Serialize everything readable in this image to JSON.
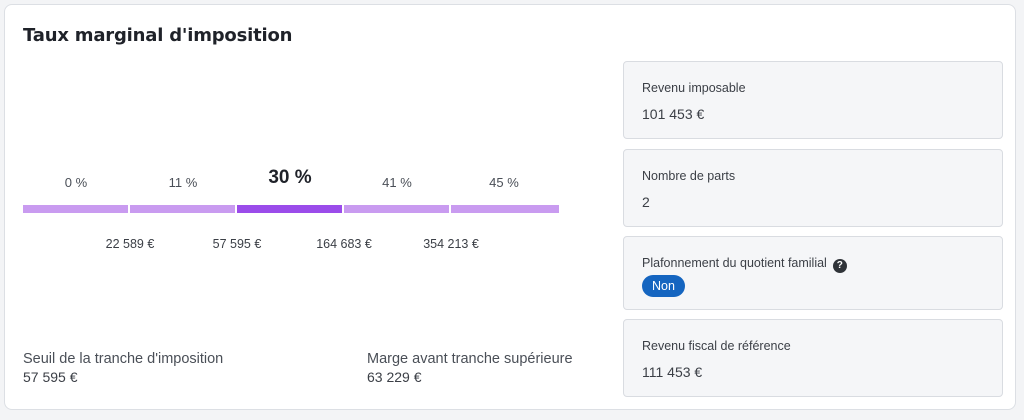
{
  "title": "Taux marginal d'imposition",
  "brackets": {
    "rates": [
      "0 %",
      "11 %",
      "30 %",
      "41 %",
      "45 %"
    ],
    "active_index": 2,
    "thresholds": [
      "22 589 €",
      "57 595 €",
      "164 683 €",
      "354 213 €"
    ]
  },
  "stats": {
    "seuil_label": "Seuil de la tranche d'imposition",
    "seuil_value": "57 595 €",
    "marge_label": "Marge avant tranche supérieure",
    "marge_value": "63 229 €"
  },
  "panels": {
    "revenu_imposable": {
      "label": "Revenu imposable",
      "value": "101 453 €"
    },
    "nombre_parts": {
      "label": "Nombre de parts",
      "value": "2"
    },
    "plafonnement": {
      "label": "Plafonnement du quotient familial",
      "help_icon": "question-circle-icon",
      "toggle": "Non"
    },
    "revenu_fiscal": {
      "label": "Revenu fiscal de référence",
      "value": "111 453 €"
    }
  },
  "colors": {
    "bar": "#c99bf0",
    "bar_active": "#9b4cea",
    "toggle": "#1565c0"
  }
}
